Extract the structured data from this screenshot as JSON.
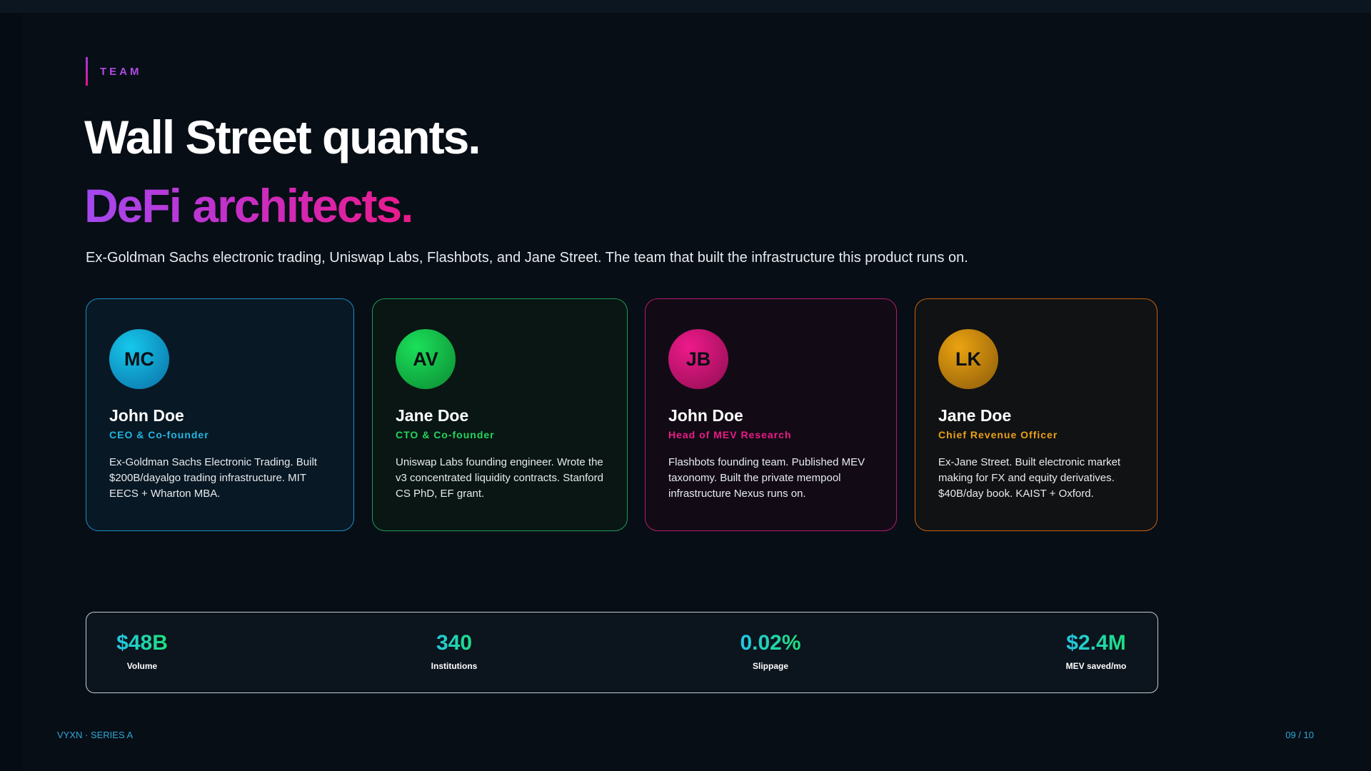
{
  "section": {
    "eyebrow": "TEAM"
  },
  "headline": {
    "line1": "Wall Street quants.",
    "line2": "DeFi architects."
  },
  "lede": "Ex-Goldman Sachs electronic trading, Uniswap Labs, Flashbots, and Jane Street. The team that built the infrastructure this product runs on.",
  "team": [
    {
      "initials": "MC",
      "name": "John Doe",
      "role": "CEO & Co-founder",
      "bio": "Ex-Goldman Sachs Electronic Trading. Built $200B/dayalgo trading infrastructure. MIT EECS + Wharton MBA.",
      "accent": "#22b6e2"
    },
    {
      "initials": "AV",
      "name": "Jane Doe",
      "role": "CTO & Co-founder",
      "bio": "Uniswap Labs founding engineer. Wrote the v3 concentrated liquidity contracts. Stanford CS PhD, EF grant.",
      "accent": "#22d65e"
    },
    {
      "initials": "JB",
      "name": "John Doe",
      "role": "Head of MEV Research",
      "bio": "Flashbots founding team. Published MEV taxonomy. Built the private mempool infrastructure Nexus runs on.",
      "accent": "#ec1a86"
    },
    {
      "initials": "LK",
      "name": "Jane Doe",
      "role": "Chief Revenue Officer",
      "bio": "Ex-Jane Street. Built electronic market making for FX and equity derivatives. $40B/day book. KAIST + Oxford.",
      "accent": "#eba017"
    }
  ],
  "stats": [
    {
      "value": "$48B",
      "label": "Volume"
    },
    {
      "value": "340",
      "label": "Institutions"
    },
    {
      "value": "0.02%",
      "label": "Slippage"
    },
    {
      "value": "$2.4M",
      "label": "MEV saved/mo"
    }
  ],
  "footer": {
    "left": "VYXN · SERIES A",
    "right": "09 / 10"
  }
}
